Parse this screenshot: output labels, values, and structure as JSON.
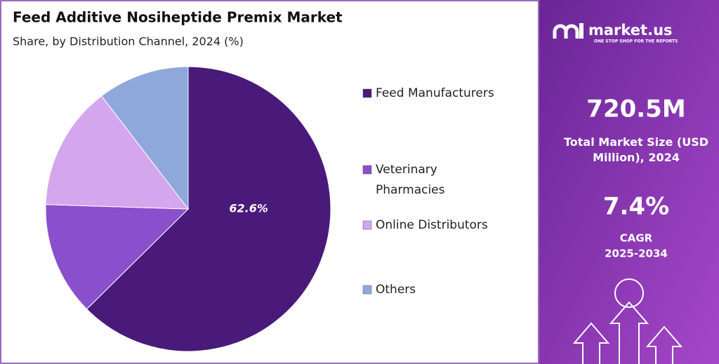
{
  "chart_data": {
    "type": "pie",
    "title": "Feed Additive Nosiheptide Premix Market",
    "subtitle": "Share, by Distribution Channel, 2024 (%)",
    "categories": [
      "Feed Manufacturers",
      "Veterinary Pharmacies",
      "Online Distributors",
      "Others"
    ],
    "values": [
      62.6,
      12.9,
      14.1,
      10.4
    ],
    "value_labels": [
      "62.6%",
      null,
      null,
      null
    ],
    "colors": [
      "#4a1a7a",
      "#8a4fcc",
      "#d4a6ee",
      "#8fa8dc"
    ],
    "legend": "right"
  },
  "side_panel": {
    "brand": "market.us",
    "tagline": "ONE STOP SHOP FOR THE REPORTS",
    "market_size": "720.5M",
    "market_size_label": "Total Market Size (USD Million), 2024",
    "cagr": "7.4%",
    "cagr_label": "CAGR",
    "cagr_period": "2025-2034"
  }
}
